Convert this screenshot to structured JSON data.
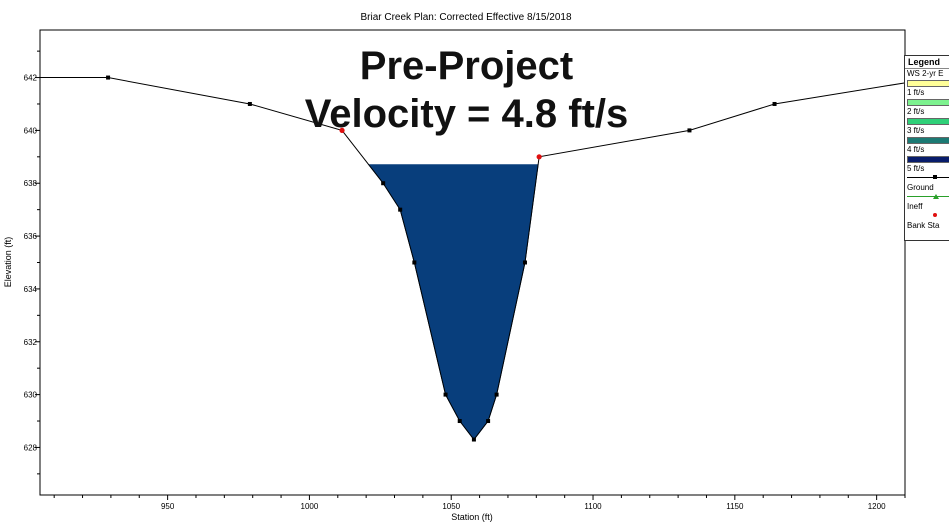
{
  "header": "Briar Creek    Plan: Corrected Effective   8/15/2018",
  "overlay": {
    "line1": "Pre-Project",
    "line2": "Velocity = 4.8 ft/s"
  },
  "legend": {
    "title": "Legend",
    "items": [
      {
        "label": "WS 2-yr E",
        "kind": "swatch",
        "color": "#ffff99"
      },
      {
        "label": "1 ft/s",
        "kind": "swatch",
        "color": "#7df28f"
      },
      {
        "label": "2 ft/s",
        "kind": "swatch",
        "color": "#2fd078"
      },
      {
        "label": "3 ft/s",
        "kind": "swatch",
        "color": "#1c7a74"
      },
      {
        "label": "4 ft/s",
        "kind": "swatch",
        "color": "#081c6b"
      },
      {
        "label": "5 ft/s",
        "kind": "line-marker",
        "color": "#000000"
      },
      {
        "label": "Ground",
        "kind": "green-marker",
        "color": "#2aa02a"
      },
      {
        "label": "Ineff",
        "kind": "dot",
        "color": "#e01010"
      },
      {
        "label": "Bank Sta",
        "kind": "text",
        "color": "#000000"
      }
    ]
  },
  "chart_data": {
    "type": "line",
    "title": "Briar Creek    Plan: Corrected Effective   8/15/2018",
    "xlabel": "Station (ft)",
    "ylabel": "Elevation (ft)",
    "xlim": [
      905,
      1210
    ],
    "ylim": [
      626.2,
      643.8
    ],
    "xticks": [
      950,
      1000,
      1050,
      1100,
      1150,
      1200
    ],
    "yticks": [
      628,
      630,
      632,
      634,
      636,
      638,
      640,
      642
    ],
    "grid": false,
    "legend_position": "right",
    "ground_profile": [
      {
        "x": 905,
        "y": 642.0
      },
      {
        "x": 929,
        "y": 642.0
      },
      {
        "x": 979,
        "y": 641.0
      },
      {
        "x": 1011.5,
        "y": 640.0
      },
      {
        "x": 1026,
        "y": 638.0
      },
      {
        "x": 1032,
        "y": 637.0
      },
      {
        "x": 1037,
        "y": 635.0
      },
      {
        "x": 1048,
        "y": 630.0
      },
      {
        "x": 1053,
        "y": 629.0
      },
      {
        "x": 1058,
        "y": 628.3
      },
      {
        "x": 1063,
        "y": 629.0
      },
      {
        "x": 1066,
        "y": 630.0
      },
      {
        "x": 1076,
        "y": 635.0
      },
      {
        "x": 1081,
        "y": 639.0
      },
      {
        "x": 1134,
        "y": 640.0
      },
      {
        "x": 1164,
        "y": 641.0
      },
      {
        "x": 1210,
        "y": 641.8
      }
    ],
    "bank_stations": [
      {
        "x": 1011.5,
        "y": 640.0
      },
      {
        "x": 1081,
        "y": 639.0
      }
    ],
    "water_surface": {
      "elevation": 638.7,
      "color": "#083e7c"
    }
  }
}
